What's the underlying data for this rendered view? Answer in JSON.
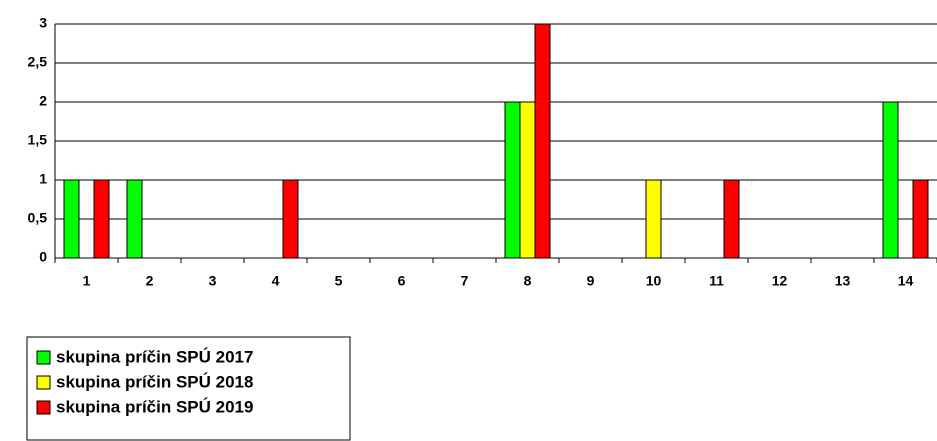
{
  "chart_data": {
    "type": "bar",
    "categories": [
      "1",
      "2",
      "3",
      "4",
      "5",
      "6",
      "7",
      "8",
      "9",
      "10",
      "11",
      "12",
      "13",
      "14"
    ],
    "series": [
      {
        "name": "skupina príčin SPÚ 2017",
        "color": "#00ff00",
        "values": [
          1,
          1,
          0,
          0,
          0,
          0,
          0,
          2,
          0,
          0,
          0,
          0,
          0,
          2
        ]
      },
      {
        "name": "skupina príčin SPÚ 2018",
        "color": "#ffff00",
        "values": [
          0,
          0,
          0,
          0,
          0,
          0,
          0,
          2,
          0,
          1,
          0,
          0,
          0,
          0
        ]
      },
      {
        "name": "skupina príčin SPÚ 2019",
        "color": "#ff0000",
        "values": [
          1,
          0,
          0,
          1,
          0,
          0,
          0,
          3,
          0,
          0,
          1,
          0,
          0,
          1
        ]
      }
    ],
    "ylim": [
      0,
      3
    ],
    "yticks": [
      0,
      {
        "value": 0.5,
        "label": "0,5"
      },
      1,
      {
        "value": 1.5,
        "label": "1,5"
      },
      2,
      {
        "value": 2.5,
        "label": "2,5"
      },
      3
    ],
    "grid": true
  }
}
